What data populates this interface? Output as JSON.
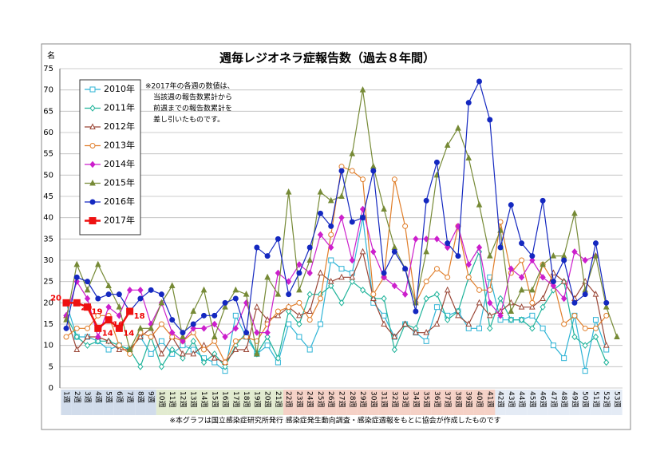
{
  "chart_data": {
    "type": "line",
    "title": "週毎レジオネラ症報告数（過去８年間）",
    "y_label": "名",
    "annotation": [
      "※2017年の各週の数値は、",
      "当該週の報告数累計から",
      "前週までの報告数累計を",
      "差し引いたものです。"
    ],
    "footnote": "※本グラフは国立感染症研究所発行 感染症発生動向調査・感染症週報をもとに協会が作成したものです",
    "categories": [
      "1週",
      "2週",
      "3週",
      "4週",
      "5週",
      "6週",
      "7週",
      "8週",
      "9週",
      "10週",
      "11週",
      "12週",
      "13週",
      "14週",
      "15週",
      "16週",
      "17週",
      "18週",
      "19週",
      "20週",
      "21週",
      "22週",
      "23週",
      "24週",
      "25週",
      "26週",
      "27週",
      "28週",
      "29週",
      "30週",
      "31週",
      "32週",
      "33週",
      "34週",
      "35週",
      "36週",
      "37週",
      "38週",
      "39週",
      "40週",
      "41週",
      "42週",
      "43週",
      "44週",
      "45週",
      "46週",
      "47週",
      "48週",
      "49週",
      "50週",
      "51週",
      "52週",
      "53週"
    ],
    "ylim": [
      0,
      75
    ],
    "yticks": [
      0,
      5,
      10,
      15,
      20,
      25,
      30,
      35,
      40,
      45,
      50,
      55,
      60,
      65,
      70,
      75
    ],
    "grid": true,
    "series": [
      {
        "name": "2010年",
        "color": "#2fb4d6",
        "marker": "square-open",
        "values": [
          20,
          12,
          12,
          11,
          9,
          10,
          9,
          12,
          8,
          11,
          8,
          10,
          9,
          7,
          6,
          4,
          17,
          12,
          8,
          10,
          6,
          15,
          12,
          9,
          15,
          30,
          28,
          27,
          40,
          20,
          17,
          12,
          15,
          13,
          11,
          19,
          17,
          18,
          14,
          14,
          26,
          16,
          16,
          16,
          17,
          14,
          10,
          7,
          17,
          4,
          16,
          9,
          null
        ]
      },
      {
        "name": "2011年",
        "color": "#1fb39a",
        "marker": "diamond-open",
        "values": [
          17,
          12,
          10,
          11,
          11,
          10,
          9,
          5,
          12,
          5,
          9,
          7,
          11,
          6,
          8,
          5,
          10,
          13,
          8,
          12,
          7,
          18,
          15,
          22,
          22,
          24,
          20,
          25,
          23,
          21,
          21,
          9,
          15,
          14,
          21,
          22,
          16,
          18,
          26,
          32,
          14,
          21,
          16,
          16,
          14,
          19,
          23,
          25,
          12,
          10,
          12,
          6,
          null
        ]
      },
      {
        "name": "2012年",
        "color": "#9a4636",
        "marker": "triangle-open",
        "values": [
          17,
          9,
          12,
          12,
          11,
          9,
          9,
          12,
          14,
          8,
          12,
          8,
          8,
          10,
          7,
          6,
          9,
          9,
          19,
          16,
          17,
          19,
          17,
          18,
          27,
          25,
          26,
          26,
          32,
          21,
          15,
          12,
          15,
          13,
          13,
          15,
          23,
          17,
          15,
          20,
          17,
          18,
          20,
          19,
          19,
          21,
          27,
          25,
          21,
          25,
          22,
          10,
          null
        ]
      },
      {
        "name": "2013年",
        "color": "#e07d28",
        "marker": "circle-open",
        "values": [
          12,
          14,
          14,
          17,
          17,
          10,
          8,
          13,
          12,
          15,
          12,
          11,
          13,
          9,
          11,
          6,
          11,
          12,
          11,
          15,
          18,
          19,
          20,
          16,
          21,
          36,
          52,
          51,
          49,
          22,
          26,
          49,
          38,
          20,
          25,
          28,
          26,
          38,
          26,
          23,
          23,
          39,
          27,
          30,
          20,
          29,
          25,
          15,
          17,
          14,
          14,
          17,
          null
        ]
      },
      {
        "name": "2014年",
        "color": "#cc1fcc",
        "marker": "diamond",
        "values": [
          17,
          25,
          21,
          12,
          19,
          17,
          23,
          23,
          15,
          20,
          13,
          11,
          14,
          14,
          15,
          12,
          14,
          20,
          13,
          13,
          27,
          25,
          29,
          27,
          36,
          33,
          40,
          30,
          42,
          32,
          26,
          24,
          22,
          35,
          35,
          35,
          33,
          38,
          29,
          33,
          20,
          17,
          28,
          26,
          30,
          26,
          24,
          21,
          32,
          30,
          31,
          null,
          null
        ]
      },
      {
        "name": "2015年",
        "color": "#768a36",
        "marker": "triangle",
        "values": [
          16,
          29,
          23,
          29,
          24,
          19,
          9,
          14,
          14,
          20,
          24,
          12,
          18,
          23,
          12,
          19,
          23,
          22,
          8,
          26,
          22,
          46,
          23,
          30,
          46,
          44,
          45,
          55,
          70,
          52,
          42,
          33,
          28,
          20,
          32,
          50,
          57,
          61,
          54,
          43,
          31,
          37,
          18,
          23,
          23,
          29,
          31,
          31,
          41,
          23,
          31,
          19,
          12
        ]
      },
      {
        "name": "2016年",
        "color": "#1428c0",
        "marker": "circle",
        "values": [
          14,
          26,
          25,
          21,
          22,
          22,
          18,
          21,
          23,
          22,
          16,
          13,
          15,
          17,
          17,
          20,
          21,
          13,
          33,
          31,
          35,
          22,
          27,
          33,
          41,
          38,
          51,
          39,
          40,
          51,
          27,
          32,
          28,
          18,
          44,
          53,
          34,
          31,
          67,
          72,
          63,
          33,
          43,
          34,
          31,
          44,
          25,
          30,
          20,
          22,
          34,
          20,
          null
        ]
      },
      {
        "name": "2017年",
        "color": "#ee1111",
        "marker": "square",
        "data_labels": true,
        "values": [
          20,
          20,
          19,
          14,
          16,
          14,
          18,
          null,
          null,
          null,
          null,
          null,
          null,
          null,
          null,
          null,
          null,
          null,
          null,
          null,
          null,
          null,
          null,
          null,
          null,
          null,
          null,
          null,
          null,
          null,
          null,
          null,
          null,
          null,
          null,
          null,
          null,
          null,
          null,
          null,
          null,
          null,
          null,
          null,
          null,
          null,
          null,
          null,
          null,
          null,
          null,
          null,
          null
        ]
      }
    ]
  }
}
